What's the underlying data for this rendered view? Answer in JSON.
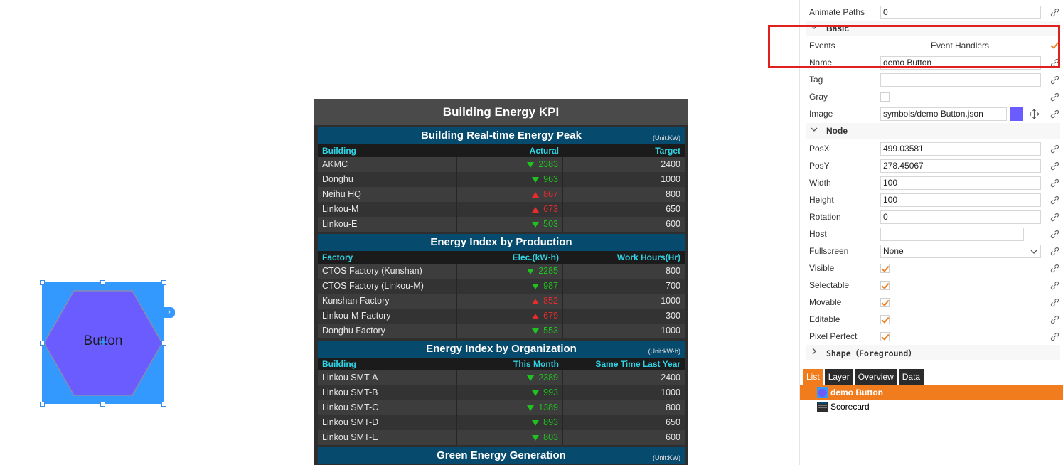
{
  "canvas": {
    "button": {
      "label": "Button",
      "fill": "#6a5cff",
      "selection_color": "#3399ff"
    }
  },
  "scorecard": {
    "title": "Building Energy KPI",
    "sections": [
      {
        "title": "Building Real-time Energy Peak",
        "unit": "(Unit:KW)",
        "columns": [
          "Building",
          "Actural",
          "Target"
        ],
        "rows": [
          {
            "name": "AKMC",
            "value": "2383",
            "trend": "down",
            "target": "2400"
          },
          {
            "name": "Donghu",
            "value": "963",
            "trend": "down",
            "target": "1000"
          },
          {
            "name": "Neihu HQ",
            "value": "867",
            "trend": "up",
            "target": "800"
          },
          {
            "name": "Linkou-M",
            "value": "673",
            "trend": "up",
            "target": "650"
          },
          {
            "name": "Linkou-E",
            "value": "503",
            "trend": "down",
            "target": "600"
          }
        ]
      },
      {
        "title": "Energy Index by Production",
        "unit": "",
        "columns": [
          "Factory",
          "Elec.(kW·h)",
          "Work Hours(Hr)"
        ],
        "rows": [
          {
            "name": "CTOS Factory (Kunshan)",
            "value": "2285",
            "trend": "down",
            "target": "800"
          },
          {
            "name": "CTOS Factory (Linkou-M)",
            "value": "987",
            "trend": "down",
            "target": "700"
          },
          {
            "name": "Kunshan Factory",
            "value": "852",
            "trend": "up",
            "target": "1000"
          },
          {
            "name": "Linkou-M Factory",
            "value": "679",
            "trend": "up",
            "target": "300"
          },
          {
            "name": "Donghu Factory",
            "value": "553",
            "trend": "down",
            "target": "1000"
          }
        ]
      },
      {
        "title": "Energy Index by Organization",
        "unit": "(Unit:kW·h)",
        "columns": [
          "Building",
          "This Month",
          "Same Time Last Year"
        ],
        "rows": [
          {
            "name": "Linkou SMT-A",
            "value": "2389",
            "trend": "down",
            "target": "2400"
          },
          {
            "name": "Linkou SMT-B",
            "value": "993",
            "trend": "down",
            "target": "1000"
          },
          {
            "name": "Linkou SMT-C",
            "value": "1389",
            "trend": "down",
            "target": "800"
          },
          {
            "name": "Linkou SMT-D",
            "value": "893",
            "trend": "down",
            "target": "650"
          },
          {
            "name": "Linkou SMT-E",
            "value": "803",
            "trend": "down",
            "target": "600"
          }
        ]
      },
      {
        "title": "Green Energy Generation",
        "unit": "(Unit:KW)",
        "columns": [],
        "rows": []
      }
    ]
  },
  "panel": {
    "animate_paths": {
      "label": "Animate Paths",
      "value": "0"
    },
    "basic_section": "Basic",
    "events": {
      "label": "Events",
      "value": "Event Handlers"
    },
    "name": {
      "label": "Name",
      "value": "demo Button"
    },
    "tag": {
      "label": "Tag",
      "value": ""
    },
    "gray": {
      "label": "Gray"
    },
    "image": {
      "label": "Image",
      "value": "symbols/demo Button.json"
    },
    "node_section": "Node",
    "posx": {
      "label": "PosX",
      "value": "499.03581"
    },
    "posy": {
      "label": "PosY",
      "value": "278.45067"
    },
    "width": {
      "label": "Width",
      "value": "100"
    },
    "height": {
      "label": "Height",
      "value": "100"
    },
    "rotation": {
      "label": "Rotation",
      "value": "0"
    },
    "host": {
      "label": "Host",
      "value": ""
    },
    "fullscreen": {
      "label": "Fullscreen",
      "value": "None"
    },
    "visible": {
      "label": "Visible"
    },
    "selectable": {
      "label": "Selectable"
    },
    "movable": {
      "label": "Movable"
    },
    "editable": {
      "label": "Editable"
    },
    "pixel_perfect": {
      "label": "Pixel Perfect"
    },
    "shape_section": "Shape（Foreground）",
    "tabs": [
      "List",
      "Layer",
      "Overview",
      "Data"
    ],
    "list": [
      "demo Button",
      "Scorecard"
    ]
  },
  "colors": {
    "accent": "#f07c1e",
    "highlight": "#e01f1f",
    "selection": "#3399ff"
  }
}
